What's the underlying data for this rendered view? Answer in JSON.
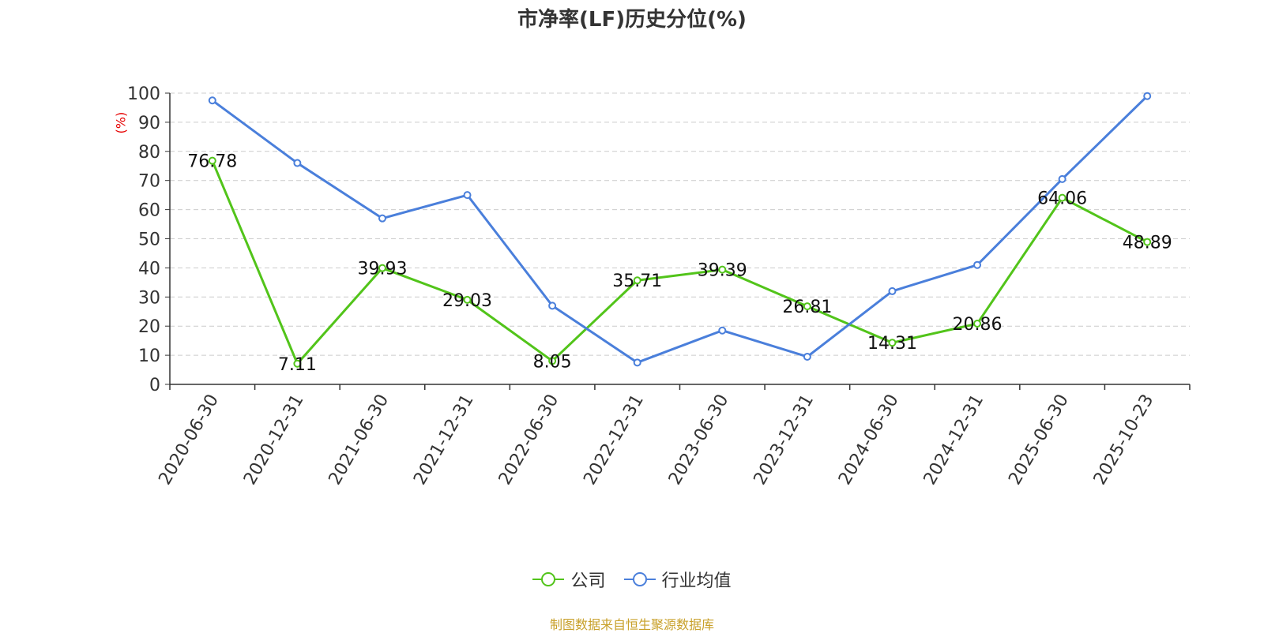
{
  "chart_data": {
    "type": "line",
    "title": "市净率(LF)历史分位(%)",
    "y_unit_label": "(%)",
    "categories": [
      "2020-06-30",
      "2020-12-31",
      "2021-06-30",
      "2021-12-31",
      "2022-06-30",
      "2022-12-31",
      "2023-06-30",
      "2023-12-31",
      "2024-06-30",
      "2024-12-31",
      "2025-06-30",
      "2025-10-23"
    ],
    "ylim": [
      0,
      100
    ],
    "yticks": [
      0,
      10,
      20,
      30,
      40,
      50,
      60,
      70,
      80,
      90,
      100
    ],
    "grid": true,
    "legend_position": "bottom",
    "series": [
      {
        "name": "公司",
        "color": "#52c41a",
        "values": [
          76.78,
          7.11,
          39.93,
          29.03,
          8.05,
          35.71,
          39.39,
          26.81,
          14.31,
          20.86,
          64.06,
          48.89
        ],
        "labels": [
          "76.78",
          "7.11",
          "39.93",
          "29.03",
          "8.05",
          "35.71",
          "39.39",
          "26.81",
          "14.31",
          "20.86",
          "64.06",
          "48.89"
        ]
      },
      {
        "name": "行业均值",
        "color": "#4a7fdb",
        "values": [
          97.5,
          76,
          57,
          65,
          27,
          7.5,
          18.5,
          9.5,
          32,
          41,
          70.5,
          99
        ]
      }
    ],
    "source": "制图数据来自恒生聚源数据库"
  }
}
